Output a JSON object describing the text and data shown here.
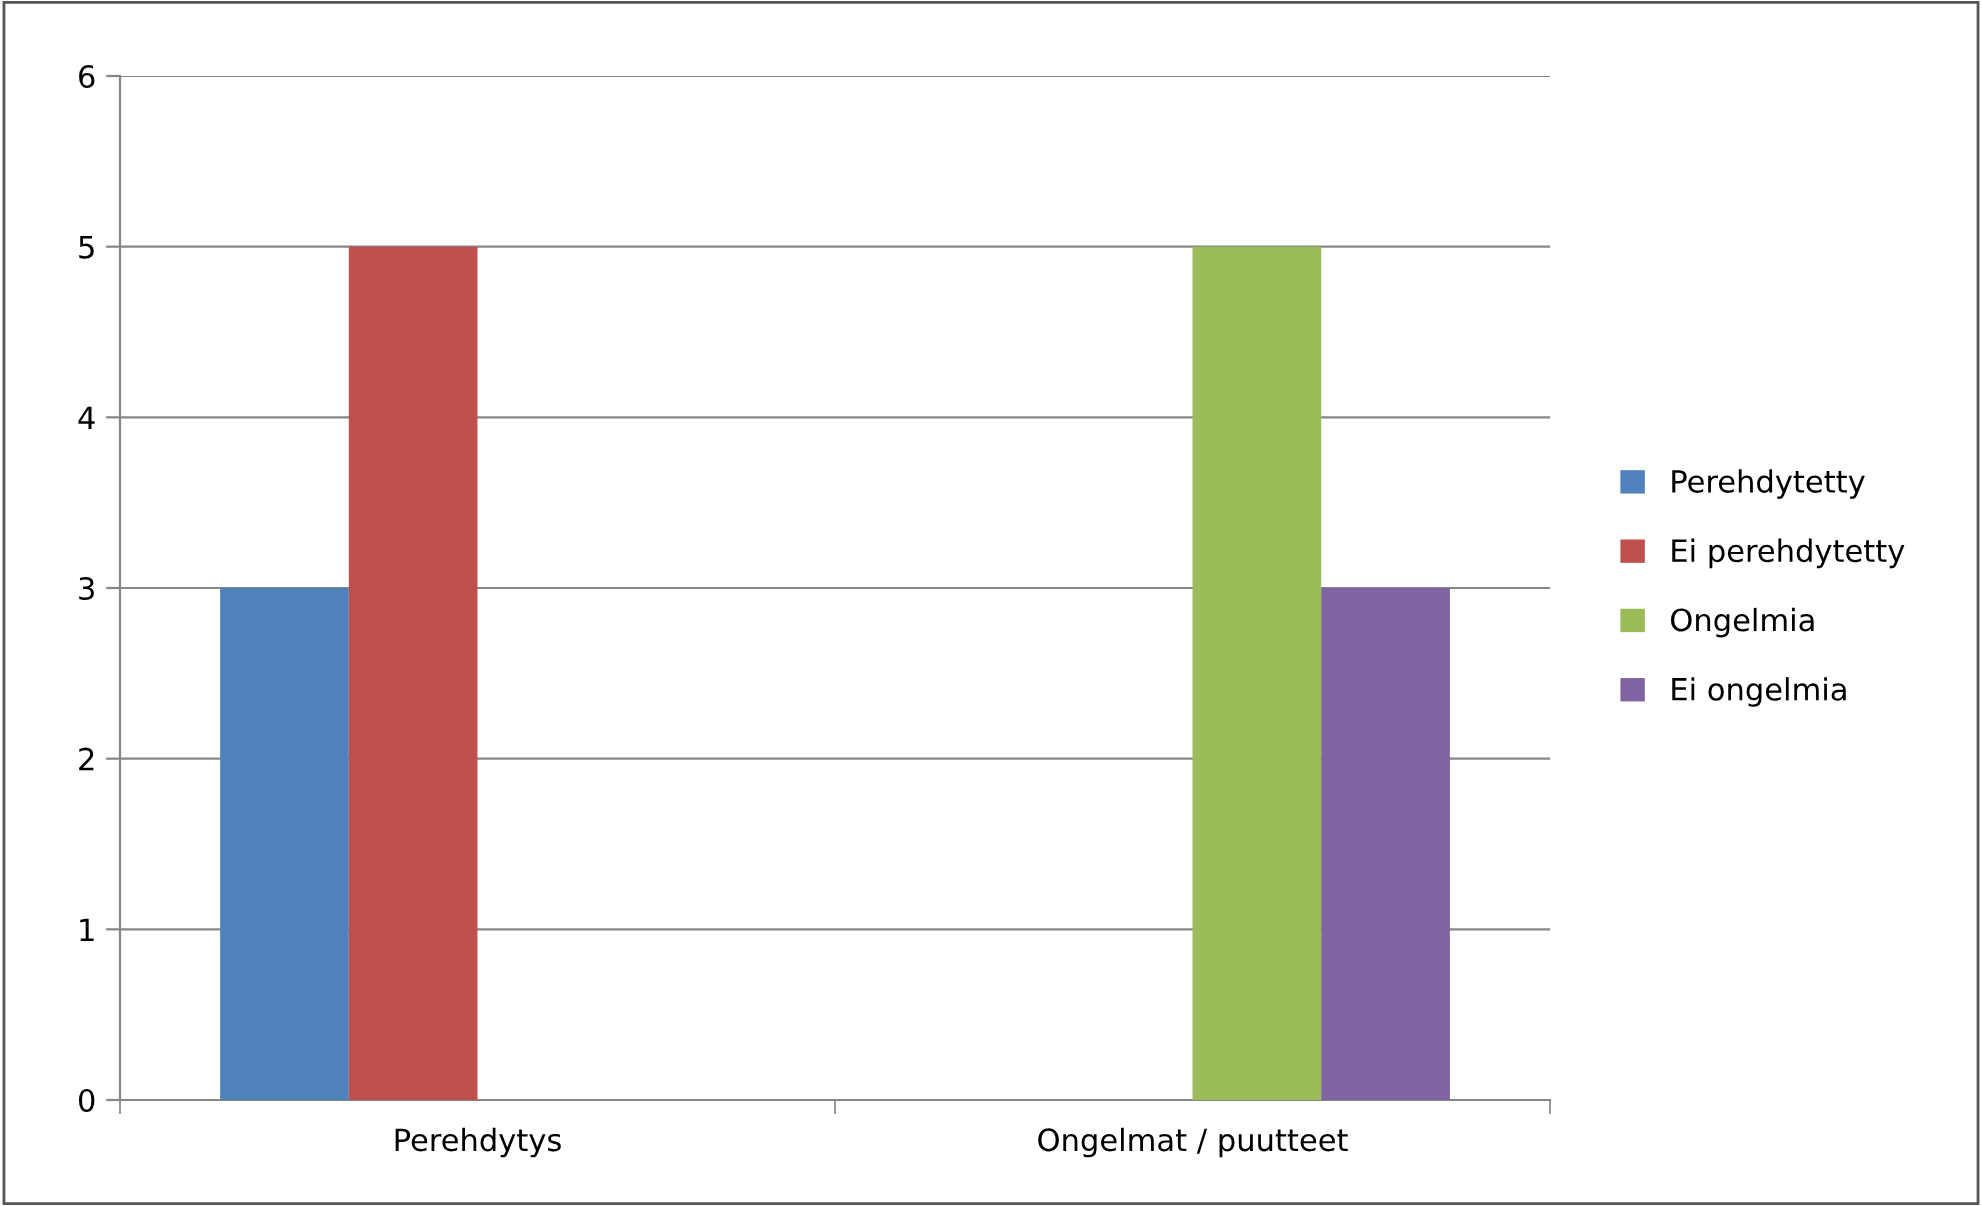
{
  "chart_data": {
    "type": "bar",
    "categories": [
      "Perehdytys",
      "Ongelmat / puutteet"
    ],
    "series": [
      {
        "name": "Perehdytetty",
        "color": "#4f81bd",
        "values": [
          3,
          null
        ]
      },
      {
        "name": "Ei perehdytetty",
        "color": "#c0504d",
        "values": [
          5,
          null
        ]
      },
      {
        "name": "Ongelmia",
        "color": "#9bbb59",
        "values": [
          null,
          5
        ]
      },
      {
        "name": "Ei ongelmia",
        "color": "#8064a2",
        "values": [
          null,
          3
        ]
      }
    ],
    "ylim": [
      0,
      6
    ],
    "yticks": [
      0,
      1,
      2,
      3,
      4,
      5,
      6
    ],
    "grid": "y",
    "legend": "right"
  }
}
